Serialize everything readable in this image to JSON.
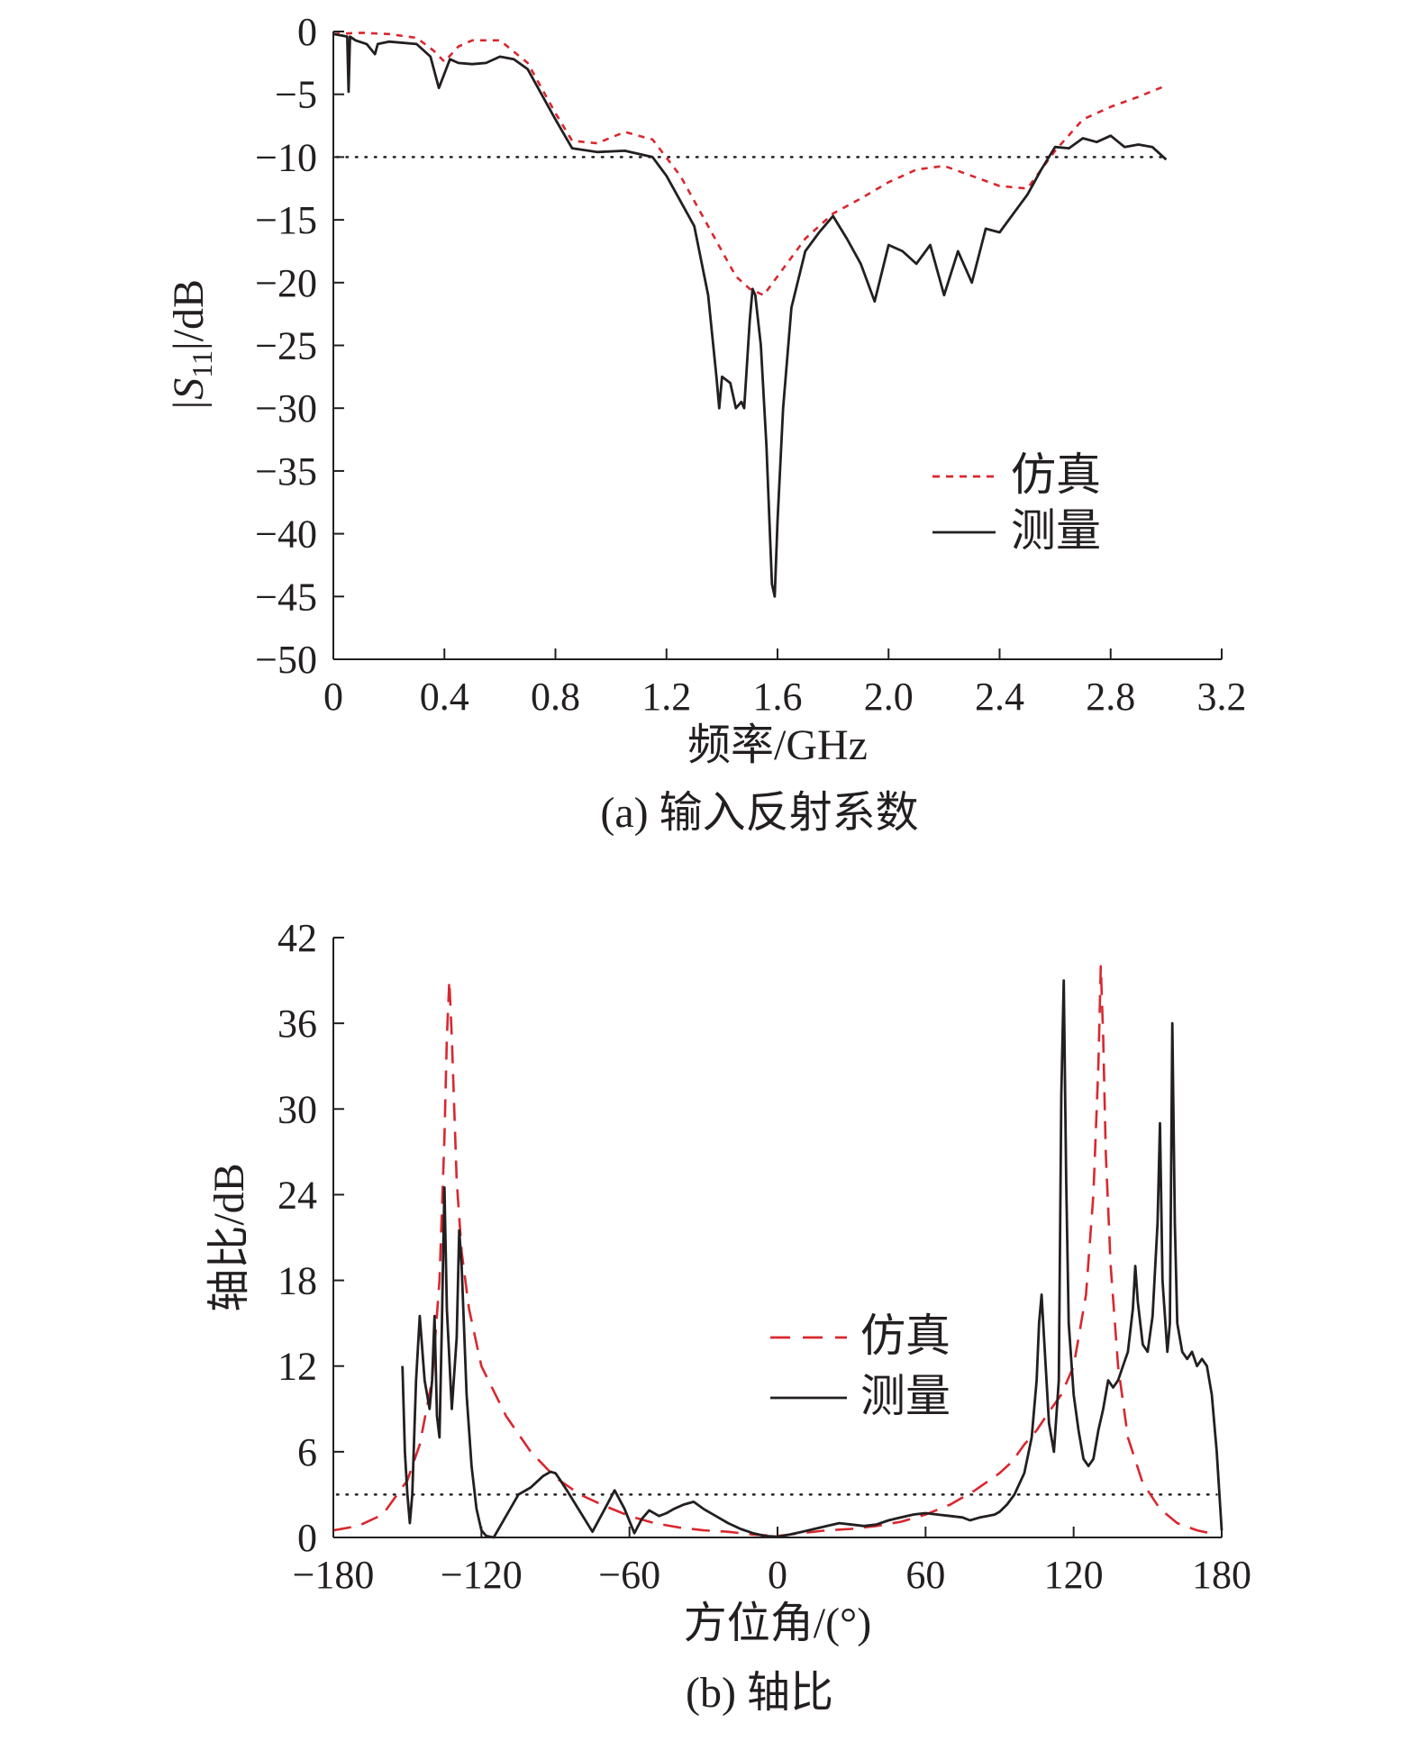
{
  "chart_data": [
    {
      "type": "line",
      "caption": "(a) 输入反射系数",
      "xlabel": "频率/GHz",
      "ylabel_prefix": "|S",
      "ylabel_sub": "11",
      "ylabel_suffix": "|/dB",
      "xlim": [
        0,
        3.2
      ],
      "ylim": [
        -50,
        0
      ],
      "xticks": [
        0,
        0.4,
        0.8,
        1.2,
        1.6,
        2.0,
        2.4,
        2.8,
        3.2
      ],
      "xtick_labels": [
        "0",
        "0.4",
        "0.8",
        "1.2",
        "1.6",
        "2.0",
        "2.4",
        "2.8",
        "3.2"
      ],
      "yticks": [
        0,
        -5,
        -10,
        -15,
        -20,
        -25,
        -30,
        -35,
        -40,
        -45,
        -50
      ],
      "ytick_labels": [
        "0",
        "−5",
        "−10",
        "−15",
        "−20",
        "−25",
        "−30",
        "−35",
        "−40",
        "−45",
        "−50"
      ],
      "reference_line": -10,
      "grid": false,
      "legend_position": "center-right",
      "series": [
        {
          "name": "仿真",
          "color": "#d9272e",
          "dash": "dotted",
          "x": [
            0,
            0.1,
            0.2,
            0.3,
            0.36,
            0.4,
            0.45,
            0.5,
            0.6,
            0.7,
            0.8,
            0.86,
            0.95,
            1.05,
            1.15,
            1.25,
            1.35,
            1.45,
            1.5,
            1.55,
            1.6,
            1.7,
            1.8,
            1.9,
            2.0,
            2.1,
            2.2,
            2.3,
            2.4,
            2.5,
            2.6,
            2.7,
            2.8,
            2.9,
            3.0
          ],
          "y": [
            -0.2,
            -0.1,
            -0.2,
            -0.5,
            -1.5,
            -2.4,
            -1.2,
            -0.7,
            -0.7,
            -2.5,
            -6.5,
            -8.7,
            -8.9,
            -8.0,
            -8.6,
            -11.5,
            -15.5,
            -19.5,
            -20.5,
            -21.0,
            -19.5,
            -16.5,
            -14.5,
            -13.3,
            -12.0,
            -11.0,
            -10.7,
            -11.5,
            -12.3,
            -12.5,
            -9.5,
            -7.0,
            -6.0,
            -5.2,
            -4.3
          ]
        },
        {
          "name": "测量",
          "color": "#231f20",
          "dash": "solid",
          "x": [
            0,
            0.05,
            0.055,
            0.06,
            0.08,
            0.12,
            0.15,
            0.16,
            0.2,
            0.3,
            0.35,
            0.38,
            0.42,
            0.45,
            0.5,
            0.55,
            0.6,
            0.65,
            0.7,
            0.8,
            0.86,
            0.95,
            1.05,
            1.15,
            1.2,
            1.25,
            1.3,
            1.35,
            1.38,
            1.39,
            1.4,
            1.43,
            1.45,
            1.47,
            1.48,
            1.5,
            1.51,
            1.52,
            1.54,
            1.56,
            1.58,
            1.59,
            1.6,
            1.62,
            1.65,
            1.7,
            1.75,
            1.8,
            1.85,
            1.9,
            1.95,
            2.0,
            2.05,
            2.1,
            2.15,
            2.2,
            2.25,
            2.3,
            2.35,
            2.4,
            2.45,
            2.5,
            2.55,
            2.6,
            2.65,
            2.7,
            2.75,
            2.8,
            2.85,
            2.9,
            2.95,
            3.0
          ],
          "y": [
            -0.2,
            -0.4,
            -4.8,
            -0.4,
            -0.7,
            -1.0,
            -1.8,
            -1.0,
            -0.8,
            -1.0,
            -2.0,
            -4.5,
            -2.2,
            -2.5,
            -2.6,
            -2.5,
            -2.0,
            -2.2,
            -3.0,
            -7.0,
            -9.3,
            -9.6,
            -9.5,
            -10.0,
            -11.5,
            -13.5,
            -15.5,
            -21.0,
            -27.5,
            -30.0,
            -27.5,
            -28.0,
            -30.0,
            -29.5,
            -30.0,
            -23.0,
            -20.5,
            -21.0,
            -25.0,
            -33.0,
            -44.0,
            -45.0,
            -39.0,
            -30.0,
            -22.0,
            -17.5,
            -16.0,
            -14.7,
            -16.5,
            -18.5,
            -21.5,
            -17.0,
            -17.5,
            -18.5,
            -17.0,
            -21.0,
            -17.5,
            -20.0,
            -15.7,
            -16.0,
            -14.5,
            -13.0,
            -11.0,
            -9.2,
            -9.3,
            -8.5,
            -8.8,
            -8.3,
            -9.2,
            -9.0,
            -9.2,
            -10.2
          ]
        }
      ]
    },
    {
      "type": "line",
      "caption": "(b) 轴比",
      "xlabel": "方位角/(°)",
      "ylabel": "轴比/dB",
      "xlim": [
        -180,
        180
      ],
      "ylim": [
        0,
        42
      ],
      "xticks": [
        -180,
        -120,
        -60,
        0,
        60,
        120,
        180
      ],
      "xtick_labels": [
        "−180",
        "−120",
        "−60",
        "0",
        "60",
        "120",
        "180"
      ],
      "yticks": [
        0,
        6,
        12,
        18,
        24,
        30,
        36,
        42
      ],
      "ytick_labels": [
        "0",
        "6",
        "12",
        "18",
        "24",
        "30",
        "36",
        "42"
      ],
      "reference_line": 3,
      "grid": false,
      "legend_position": "center-right",
      "series": [
        {
          "name": "仿真",
          "color": "#d9272e",
          "dash": "dashed",
          "x": [
            -180,
            -170,
            -160,
            -150,
            -145,
            -140,
            -137,
            -135,
            -134,
            -133,
            -132,
            -130,
            -128,
            -125,
            -120,
            -110,
            -100,
            -90,
            -80,
            -70,
            -60,
            -50,
            -40,
            -30,
            -20,
            -10,
            0,
            10,
            20,
            30,
            40,
            50,
            60,
            70,
            80,
            90,
            95,
            100,
            105,
            110,
            115,
            120,
            125,
            128,
            130,
            131,
            132,
            133,
            135,
            138,
            142,
            148,
            155,
            162,
            170,
            178
          ],
          "y": [
            0.5,
            0.8,
            1.6,
            4.0,
            6.5,
            11.0,
            18.0,
            28.0,
            35.0,
            39.0,
            35.0,
            25.0,
            20.0,
            16.0,
            12.0,
            8.5,
            6.0,
            4.2,
            3.0,
            2.2,
            1.5,
            1.0,
            0.7,
            0.5,
            0.4,
            0.2,
            0.1,
            0.3,
            0.5,
            0.6,
            0.8,
            1.1,
            1.6,
            2.3,
            3.3,
            4.5,
            5.3,
            6.5,
            7.5,
            8.8,
            10.0,
            12.0,
            17.0,
            24.0,
            33.0,
            40.0,
            35.0,
            27.0,
            19.0,
            12.0,
            7.0,
            3.8,
            2.0,
            1.0,
            0.5,
            0.2
          ]
        },
        {
          "name": "测量",
          "color": "#231f20",
          "dash": "solid",
          "x": [
            -152,
            -151,
            -150,
            -149,
            -148,
            -146.5,
            -145,
            -143,
            -141,
            -140,
            -139,
            -138,
            -137,
            -136,
            -135.5,
            -135,
            -134,
            -132,
            -130,
            -129,
            -128,
            -126,
            -124,
            -122,
            -120,
            -118,
            -115,
            -110,
            -105,
            -100,
            -95,
            -92,
            -90,
            -88,
            -85,
            -80,
            -75,
            -70,
            -66,
            -62,
            -58,
            -55,
            -52,
            -48,
            -45,
            -42,
            -38,
            -34,
            -30,
            -25,
            -20,
            -15,
            -10,
            -5,
            0,
            5,
            10,
            15,
            20,
            25,
            30,
            35,
            40,
            45,
            50,
            55,
            60,
            65,
            70,
            75,
            78,
            82,
            85,
            88,
            90,
            93,
            96,
            100,
            103,
            105,
            106,
            107,
            108,
            110,
            112,
            114,
            115,
            116,
            117,
            118,
            120,
            122,
            124,
            126,
            128,
            130,
            132,
            134,
            136,
            138,
            140,
            142,
            144,
            145,
            146,
            148,
            150,
            152,
            154,
            155,
            156,
            157,
            158,
            159,
            160,
            161,
            162,
            164,
            166,
            168,
            170,
            172,
            174,
            176,
            178,
            180
          ],
          "y": [
            12.0,
            6.0,
            3.0,
            1.0,
            3.0,
            11.0,
            15.5,
            11.0,
            9.0,
            11.0,
            15.5,
            8.5,
            7.0,
            15.0,
            20.0,
            24.5,
            16.0,
            9.0,
            14.0,
            21.5,
            19.0,
            10.0,
            5.0,
            2.0,
            0.5,
            0.1,
            0.0,
            1.5,
            3.0,
            3.5,
            4.3,
            4.6,
            4.5,
            4.0,
            3.2,
            1.8,
            0.4,
            2.0,
            3.3,
            2.0,
            0.3,
            1.3,
            1.9,
            1.5,
            1.7,
            2.0,
            2.3,
            2.5,
            2.0,
            1.5,
            1.0,
            0.6,
            0.3,
            0.1,
            0.05,
            0.2,
            0.4,
            0.6,
            0.8,
            1.0,
            0.9,
            0.8,
            0.9,
            1.2,
            1.4,
            1.6,
            1.7,
            1.6,
            1.5,
            1.4,
            1.2,
            1.4,
            1.5,
            1.6,
            1.8,
            2.3,
            3.0,
            4.5,
            7.0,
            11.0,
            15.0,
            17.0,
            14.0,
            8.0,
            6.0,
            11.0,
            31.0,
            39.0,
            25.0,
            15.0,
            10.0,
            7.5,
            5.5,
            5.0,
            5.5,
            7.5,
            9.0,
            11.0,
            10.5,
            11.0,
            12.0,
            13.0,
            16.0,
            19.0,
            16.5,
            13.5,
            13.0,
            15.5,
            22.0,
            29.0,
            18.0,
            15.5,
            13.0,
            15.0,
            36.0,
            22.0,
            15.0,
            13.0,
            12.5,
            13.0,
            12.0,
            12.5,
            12.0,
            10.0,
            6.0,
            0.5
          ]
        }
      ]
    }
  ]
}
